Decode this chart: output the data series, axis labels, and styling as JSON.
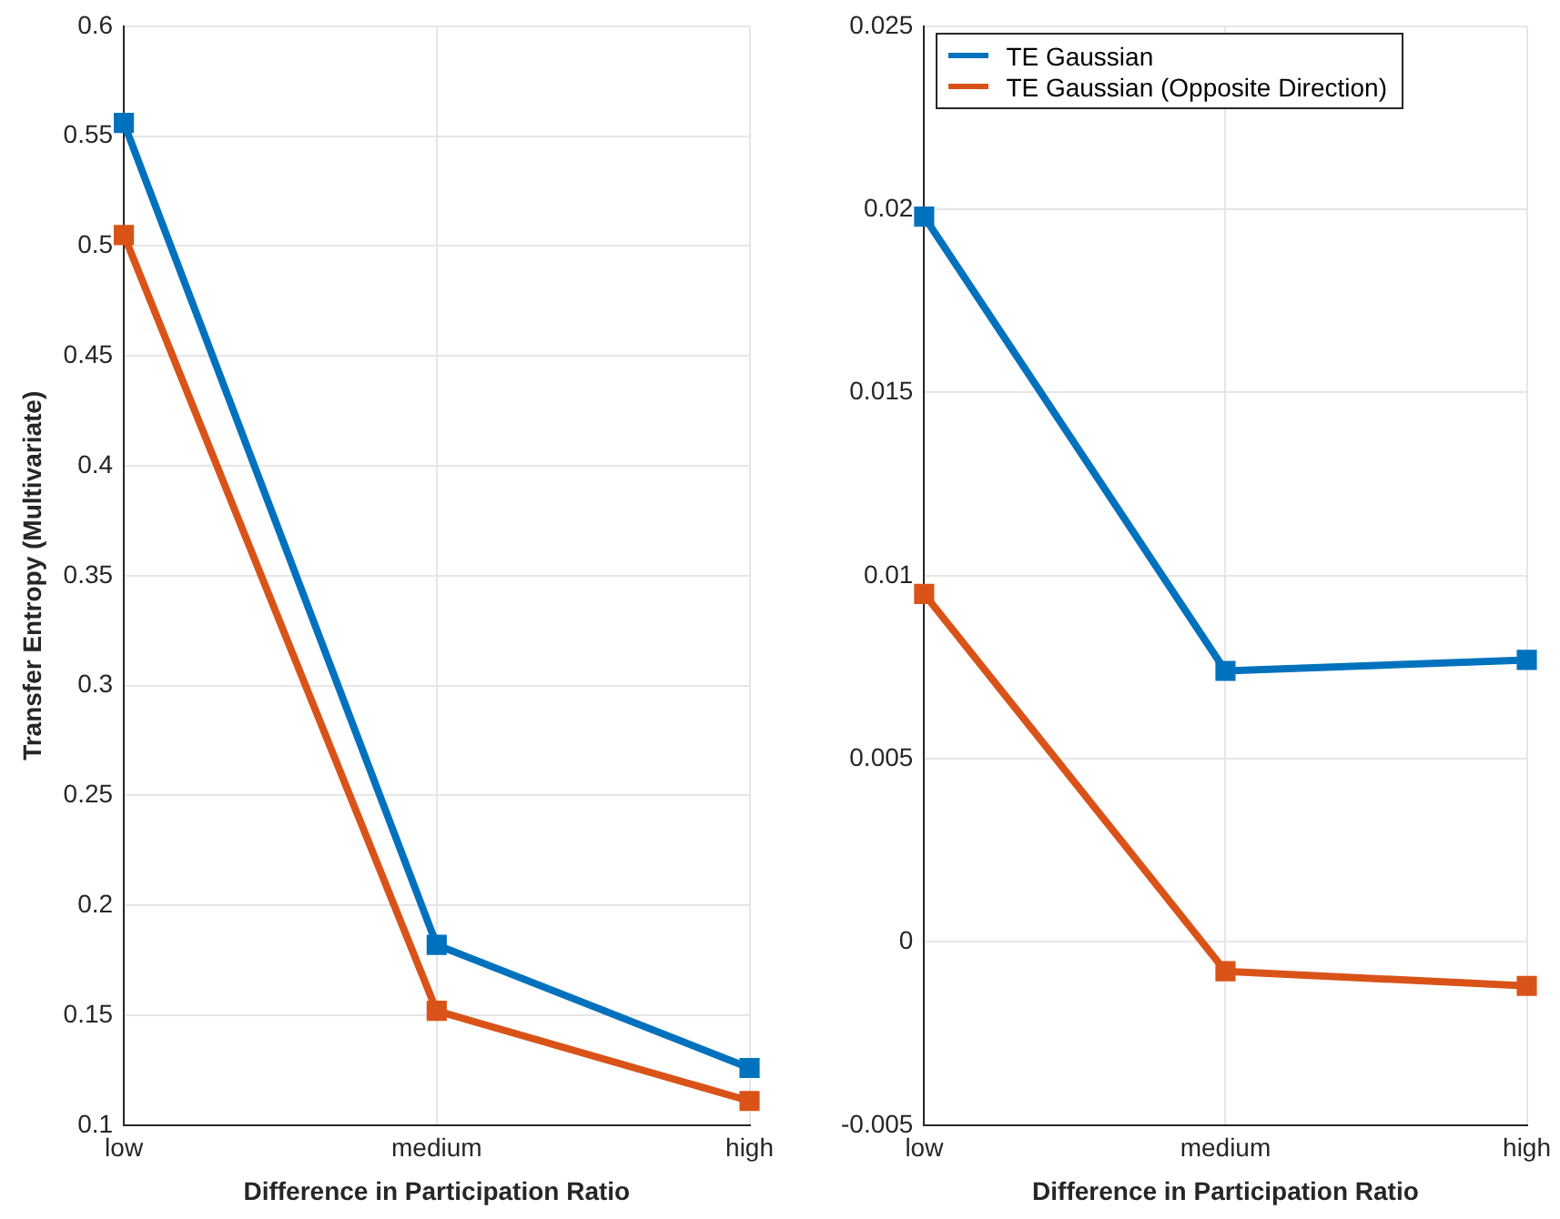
{
  "chart_data": [
    {
      "type": "line",
      "categories": [
        "low",
        "medium",
        "high"
      ],
      "xlabel": "Difference in Participation Ratio",
      "ylabel": "Transfer Entropy (Multivariate)",
      "ylim": [
        0.1,
        0.6
      ],
      "yticks": [
        0.1,
        0.15,
        0.2,
        0.25,
        0.3,
        0.35,
        0.4,
        0.45,
        0.5,
        0.55,
        0.6
      ],
      "grid": true,
      "marker": "square",
      "series": [
        {
          "color": "#0072bd",
          "values": [
            0.556,
            0.182,
            0.126
          ]
        },
        {
          "color": "#d95319",
          "values": [
            0.505,
            0.152,
            0.111
          ]
        }
      ]
    },
    {
      "type": "line",
      "categories": [
        "low",
        "medium",
        "high"
      ],
      "xlabel": "Difference in Participation Ratio",
      "ylim": [
        -0.005,
        0.025
      ],
      "yticks": [
        -0.005,
        0,
        0.005,
        0.01,
        0.015,
        0.02,
        0.025
      ],
      "grid": true,
      "marker": "square",
      "legend": "top left",
      "series": [
        {
          "name": "TE Gaussian",
          "color": "#0072bd",
          "values": [
            0.0198,
            0.0074,
            0.0077
          ]
        },
        {
          "name": "TE Gaussian (Opposite Direction)",
          "color": "#d95319",
          "values": [
            0.0095,
            -0.0008,
            -0.0012
          ]
        }
      ]
    }
  ]
}
